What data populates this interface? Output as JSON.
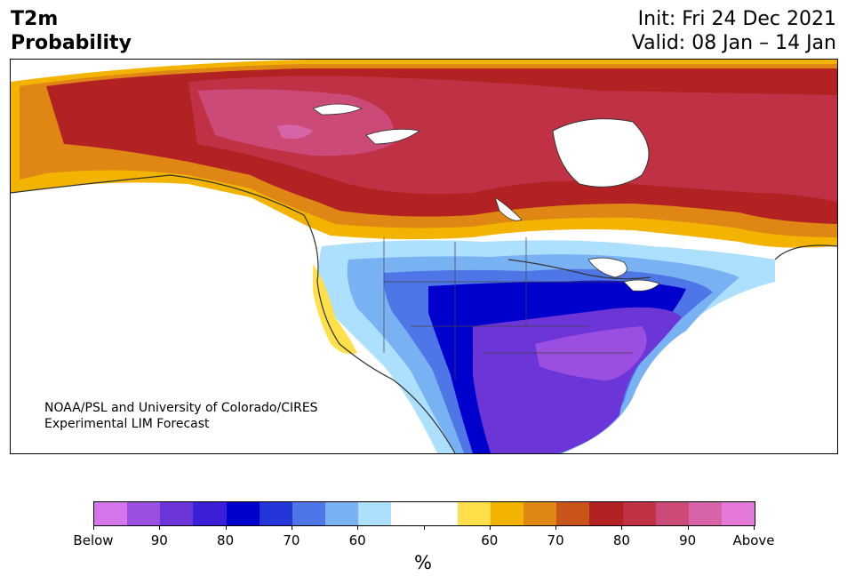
{
  "header": {
    "title_line1": "T2m",
    "title_line2": "Probability",
    "init": "Init: Fri 24 Dec 2021",
    "valid": "Valid: 08 Jan – 14 Jan"
  },
  "map": {
    "credit_line1": "NOAA/PSL and University of Colorado/CIRES",
    "credit_line2": "Experimental LIM Forecast"
  },
  "colorbar": {
    "colors": [
      "#d675ea",
      "#9a4fe0",
      "#6c35d8",
      "#3a1fd6",
      "#0000cd",
      "#2536d8",
      "#4f76e6",
      "#78b2f3",
      "#addfff",
      "#ffffff",
      "#ffffff",
      "#ffe04a",
      "#f2b400",
      "#df8615",
      "#c8541a",
      "#b22222",
      "#c03146",
      "#cc4a77",
      "#d864a8",
      "#e479d9"
    ],
    "tick_labels": [
      "Below",
      "90",
      "80",
      "70",
      "60",
      "",
      "60",
      "70",
      "80",
      "90",
      "Above"
    ],
    "unit": "%"
  }
}
